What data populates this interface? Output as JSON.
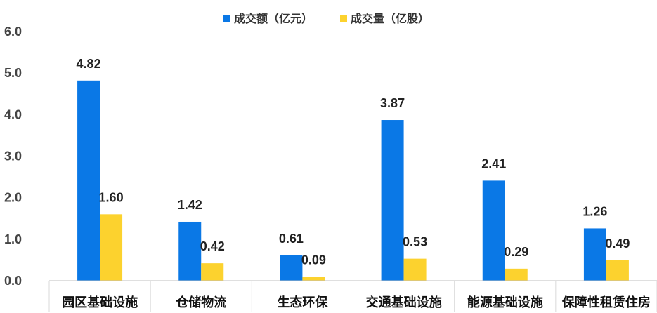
{
  "chart_data": {
    "type": "bar",
    "categories": [
      "园区基础设施",
      "仓储物流",
      "生态环保",
      "交通基础设施",
      "能源基础设施",
      "保障性租赁住房"
    ],
    "series": [
      {
        "name": "成交额（亿元）",
        "values": [
          4.82,
          1.42,
          0.61,
          3.87,
          2.41,
          1.26
        ],
        "color": "#0a78e6"
      },
      {
        "name": "成交量（亿股）",
        "values": [
          1.6,
          0.42,
          0.09,
          0.53,
          0.29,
          0.49
        ],
        "color": "#fcd22e"
      }
    ],
    "yticks": [
      "0.0",
      "1.0",
      "2.0",
      "3.0",
      "4.0",
      "5.0",
      "6.0"
    ],
    "ylim": [
      0,
      6
    ],
    "legend_position": "top-center",
    "grid": false
  }
}
